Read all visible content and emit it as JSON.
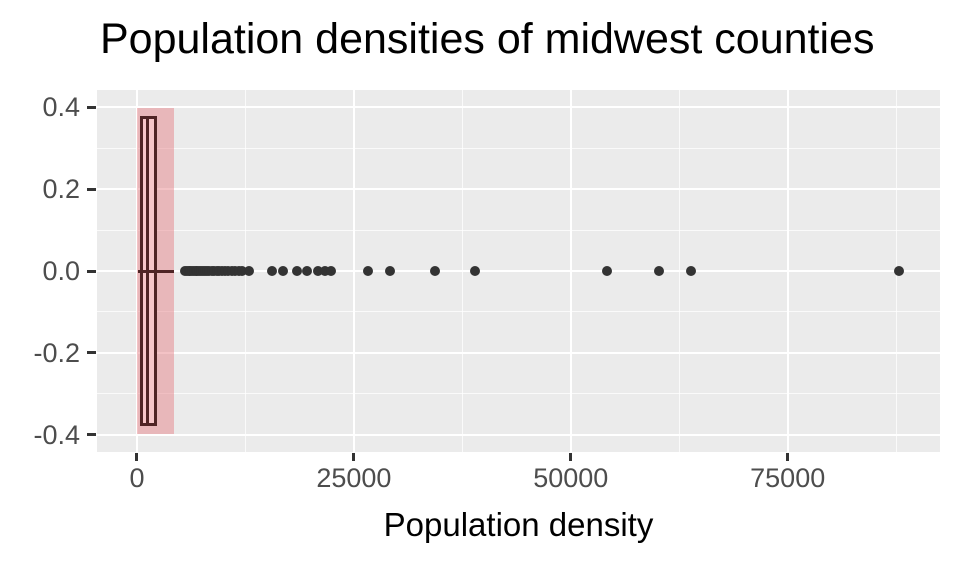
{
  "chart_data": {
    "type": "boxplot",
    "orientation": "horizontal",
    "title": "Population densities of midwest counties",
    "xlabel": "Population density",
    "ylabel": "",
    "grid": true,
    "legend": false,
    "xlim": [
      -4610,
      92555
    ],
    "ylim": [
      -0.4415,
      0.4415
    ],
    "x_major_ticks": [
      0,
      25000,
      50000,
      75000
    ],
    "x_tick_labels": [
      "0",
      "25000",
      "50000",
      "75000"
    ],
    "x_minor_ticks": [
      12500,
      37500,
      62500,
      87500
    ],
    "y_major_ticks": [
      0.4,
      0.2,
      0.0,
      -0.2,
      -0.4
    ],
    "y_tick_labels": [
      "0.4",
      "0.2",
      "0.0",
      "-0.2",
      "-0.4"
    ],
    "y_minor_ticks": [
      0.3,
      0.1,
      -0.1,
      -0.3
    ],
    "box": {
      "center_y": 0,
      "whisker_low": 85,
      "q1": 400,
      "median": 1210,
      "q3": 2360,
      "whisker_high": 4265,
      "box_half_height": 0.378
    },
    "highlight": {
      "x0": 0,
      "x1": 4265,
      "y_half": 0.397
    },
    "outliers": [
      5550,
      5750,
      5950,
      6150,
      6350,
      6550,
      6750,
      6950,
      7150,
      7350,
      7600,
      7850,
      8100,
      8350,
      8600,
      8900,
      9200,
      9500,
      9800,
      10150,
      10500,
      10900,
      11300,
      11700,
      12100,
      12900,
      15550,
      16850,
      18450,
      19600,
      20850,
      21650,
      22400,
      26650,
      29150,
      34350,
      38950,
      54150,
      60150,
      63850,
      87850
    ],
    "colors": {
      "panel_bg": "#EBEBEB",
      "grid": "#FFFFFF",
      "box_border": "#4F2425",
      "box_fill": "#F6C6C9",
      "highlight_fill": "rgba(228,120,126,0.45)",
      "point": "#333333",
      "tick": "#333333",
      "tick_label": "#4D4D4D",
      "title_color": "#000000"
    }
  }
}
